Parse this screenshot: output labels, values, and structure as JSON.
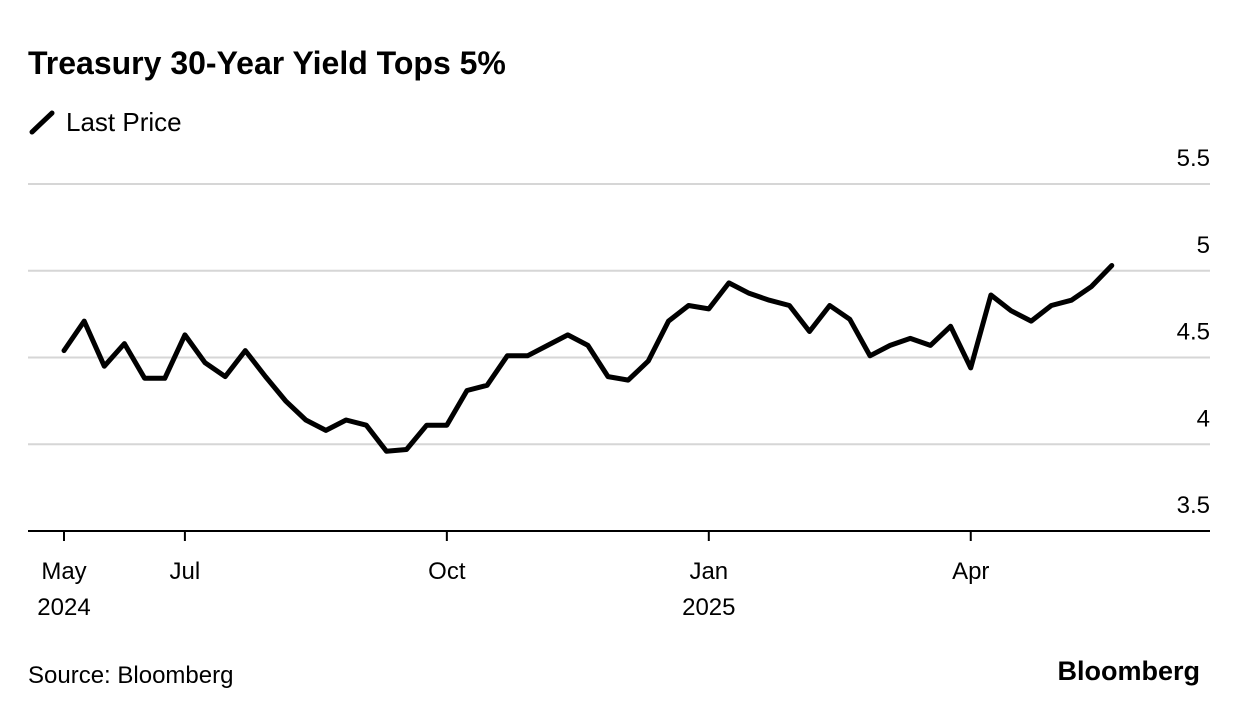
{
  "chart_data": {
    "type": "line",
    "title": "Treasury 30-Year Yield Tops 5%",
    "source": "Source: Bloomberg",
    "brand": "Bloomberg",
    "categories": [
      "May",
      null,
      null,
      null,
      null,
      null,
      "Jul",
      null,
      null,
      null,
      null,
      null,
      null,
      null,
      null,
      null,
      null,
      null,
      null,
      "Oct",
      null,
      null,
      null,
      null,
      null,
      null,
      null,
      null,
      null,
      null,
      null,
      null,
      "Jan",
      null,
      null,
      null,
      null,
      null,
      null,
      null,
      null,
      null,
      null,
      null,
      null,
      "Apr",
      null,
      null,
      null,
      null,
      null,
      null,
      null
    ],
    "category_years": [
      "2024",
      null,
      null,
      null,
      null,
      null,
      null,
      null,
      null,
      null,
      null,
      null,
      null,
      null,
      null,
      null,
      null,
      null,
      null,
      null,
      null,
      null,
      null,
      null,
      null,
      null,
      null,
      null,
      null,
      null,
      null,
      null,
      "2025",
      null,
      null,
      null,
      null,
      null,
      null,
      null,
      null,
      null,
      null,
      null,
      null,
      null,
      null,
      null,
      null,
      null,
      null,
      null,
      null
    ],
    "series": [
      {
        "name": "Last Price",
        "color": "#000000",
        "values": [
          4.54,
          4.71,
          4.45,
          4.58,
          4.38,
          4.38,
          4.63,
          4.47,
          4.39,
          4.54,
          4.39,
          4.25,
          4.14,
          4.08,
          4.14,
          4.11,
          3.96,
          3.97,
          4.11,
          4.11,
          4.31,
          4.34,
          4.51,
          4.51,
          4.57,
          4.63,
          4.57,
          4.39,
          4.37,
          4.48,
          4.71,
          4.8,
          4.78,
          4.93,
          4.87,
          4.83,
          4.8,
          4.65,
          4.8,
          4.72,
          4.51,
          4.57,
          4.61,
          4.57,
          4.68,
          4.44,
          4.86,
          4.77,
          4.71,
          4.8,
          4.83,
          4.91,
          5.03
        ]
      }
    ],
    "ylim": [
      3.5,
      5.5
    ],
    "yticks": [
      3.5,
      4,
      4.5,
      5,
      5.5
    ],
    "grid": true
  }
}
